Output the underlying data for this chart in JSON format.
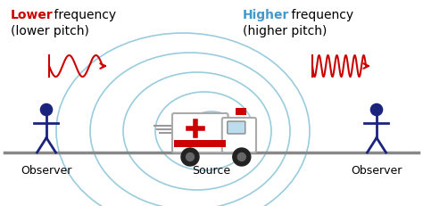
{
  "bg_color": "#ffffff",
  "title_left_colored": "Lower",
  "title_left_rest1": " frequency",
  "title_left_rest2": "(lower pitch)",
  "title_right_colored": "Higher",
  "title_right_rest1": " frequency",
  "title_right_rest2": "(higher pitch)",
  "red_color": "#cc0000",
  "blue_color": "#4499cc",
  "observer_color": "#1a237e",
  "wave_circles_color": "#99ccdd",
  "ground_color": "#888888",
  "fig_w": 4.74,
  "fig_h": 2.32,
  "dpi": 100
}
